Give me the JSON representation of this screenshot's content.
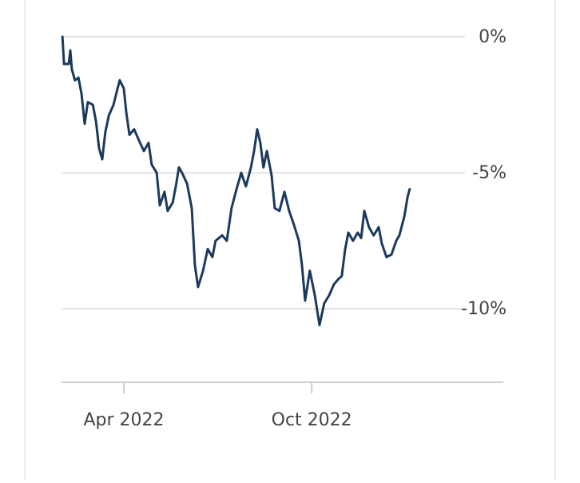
{
  "chart_data": {
    "type": "line",
    "x": [
      2.04,
      2.09,
      2.24,
      2.29,
      2.34,
      2.44,
      2.55,
      2.65,
      2.75,
      2.85,
      3.01,
      3.11,
      3.21,
      3.31,
      3.41,
      3.52,
      3.67,
      3.8,
      3.87,
      4.0,
      4.08,
      4.18,
      4.33,
      4.48,
      4.64,
      4.79,
      4.89,
      5.05,
      5.15,
      5.3,
      5.4,
      5.56,
      5.66,
      5.76,
      5.86,
      6.02,
      6.17,
      6.27,
      6.37,
      6.53,
      6.68,
      6.83,
      6.93,
      7.14,
      7.29,
      7.44,
      7.6,
      7.75,
      7.9,
      8.06,
      8.16,
      8.26,
      8.36,
      8.46,
      8.57,
      8.72,
      8.82,
      8.97,
      9.13,
      9.28,
      9.43,
      9.59,
      9.69,
      9.79,
      9.94,
      10.1,
      10.25,
      10.4,
      10.56,
      10.71,
      10.86,
      10.96,
      11.07,
      11.17,
      11.32,
      11.47,
      11.58,
      11.68,
      11.83,
      11.98,
      12.14,
      12.24,
      12.39,
      12.55,
      12.7,
      12.8,
      12.96,
      13.06,
      13.13
    ],
    "series": [
      {
        "color": "#1b3a5c",
        "values": [
          0,
          -1.0,
          -1.0,
          -0.5,
          -1.2,
          -1.6,
          -1.5,
          -2.1,
          -3.2,
          -2.4,
          -2.5,
          -3.1,
          -4.1,
          -4.5,
          -3.5,
          -2.9,
          -2.5,
          -1.9,
          -1.6,
          -1.9,
          -2.8,
          -3.6,
          -3.4,
          -3.8,
          -4.2,
          -3.9,
          -4.7,
          -5.0,
          -6.2,
          -5.7,
          -6.4,
          -6.1,
          -5.5,
          -4.8,
          -5.0,
          -5.4,
          -6.3,
          -8.4,
          -9.2,
          -8.6,
          -7.8,
          -8.1,
          -7.5,
          -7.3,
          -7.5,
          -6.3,
          -5.6,
          -5.0,
          -5.5,
          -4.8,
          -4.2,
          -3.4,
          -3.9,
          -4.8,
          -4.2,
          -5.1,
          -6.3,
          -6.4,
          -5.7,
          -6.4,
          -6.9,
          -7.5,
          -8.4,
          -9.7,
          -8.6,
          -9.5,
          -10.6,
          -9.8,
          -9.5,
          -9.1,
          -8.9,
          -8.8,
          -7.8,
          -7.2,
          -7.5,
          -7.2,
          -7.4,
          -6.4,
          -7.0,
          -7.3,
          -7.0,
          -7.6,
          -8.1,
          -8.0,
          -7.5,
          -7.3,
          -6.6,
          -5.9,
          -5.6
        ]
      }
    ],
    "xlim": [
      2.01,
      16.12
    ],
    "xticks": [
      {
        "value": 4,
        "label": "Apr 2022"
      },
      {
        "value": 10,
        "label": "Oct 2022"
      }
    ],
    "ylim": [
      -12.7,
      0.5
    ],
    "yticks": [
      {
        "value": 0,
        "label": "0%"
      },
      {
        "value": -5,
        "label": "-5%"
      },
      {
        "value": -10,
        "label": "-10%"
      }
    ],
    "grid": true
  }
}
